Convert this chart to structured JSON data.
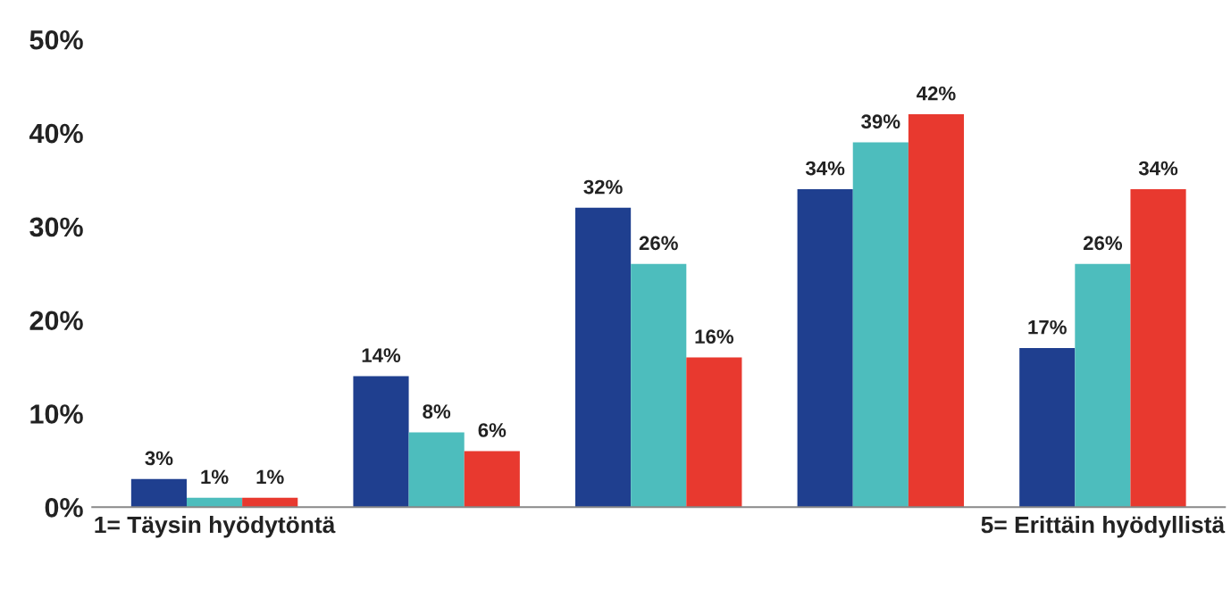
{
  "chart_data": {
    "type": "bar",
    "categories": [
      "1= Täysin hyödytöntä",
      null,
      null,
      null,
      "5= Erittäin hyödyllistä"
    ],
    "series": [
      {
        "color": "#1f3f8f",
        "values": [
          3,
          14,
          32,
          34,
          17
        ],
        "value_labels": [
          "3%",
          "14%",
          "32%",
          "34%",
          "17%"
        ]
      },
      {
        "color": "#4dbdbd",
        "values": [
          1,
          8,
          26,
          39,
          26
        ],
        "value_labels": [
          "1%",
          "8%",
          "26%",
          "39%",
          "26%"
        ]
      },
      {
        "color": "#e8392f",
        "values": [
          1,
          6,
          16,
          42,
          34
        ],
        "value_labels": [
          "1%",
          "6%",
          "16%",
          "42%",
          "34%"
        ]
      }
    ],
    "ylim": [
      0,
      50
    ],
    "yticks": [
      {
        "value": 0,
        "label": "0%"
      },
      {
        "value": 10,
        "label": "10%"
      },
      {
        "value": 20,
        "label": "20%"
      },
      {
        "value": 30,
        "label": "30%"
      },
      {
        "value": 40,
        "label": "40%"
      },
      {
        "value": 50,
        "label": "50%"
      }
    ]
  }
}
